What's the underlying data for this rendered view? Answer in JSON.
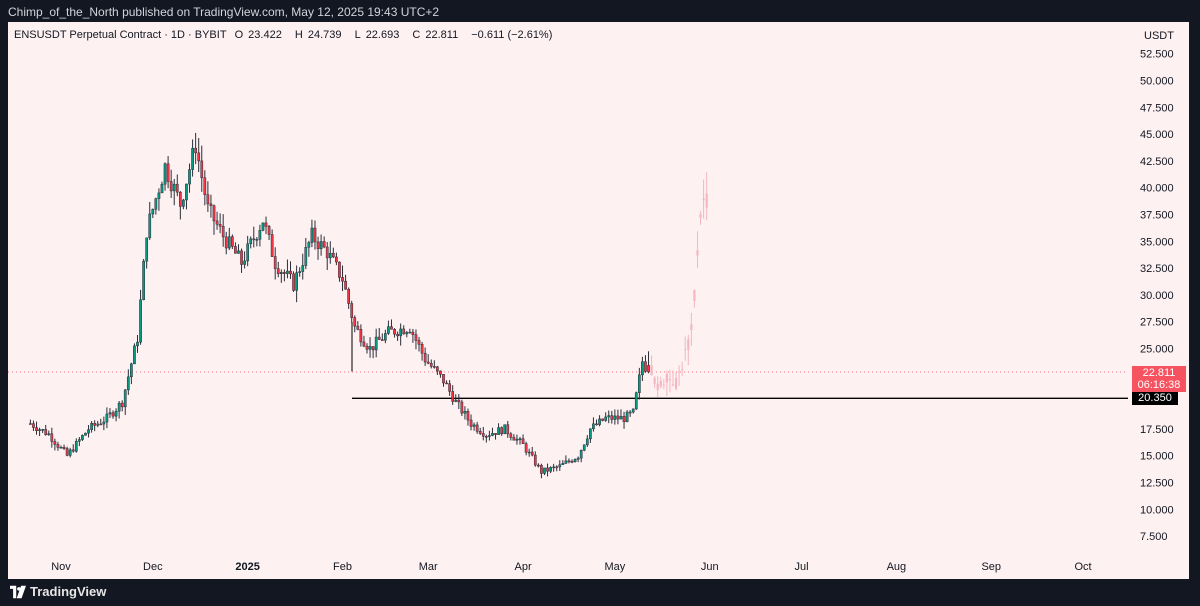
{
  "header": {
    "publisher_text": "Chimp_of_the_North published on TradingView.com, May 12, 2025 19:43 UTC+2"
  },
  "legend": {
    "symbol": "ENSUSDT Perpetual Contract · 1D · BYBIT",
    "open_label": "O",
    "open": "23.422",
    "high_label": "H",
    "high": "24.739",
    "low_label": "L",
    "low": "22.693",
    "close_label": "C",
    "close": "22.811",
    "change": "−0.611 (−2.61%)"
  },
  "price_axis": {
    "unit": "USDT",
    "ticks": [
      "52.500",
      "50.000",
      "47.500",
      "45.000",
      "42.500",
      "40.000",
      "37.500",
      "35.000",
      "32.500",
      "30.000",
      "27.500",
      "25.000",
      "17.500",
      "15.000",
      "12.500",
      "10.000",
      "7.500"
    ]
  },
  "current_price": {
    "value": "22.811",
    "countdown": "06:16:38"
  },
  "horizontal_level": {
    "value": "20.350"
  },
  "footer": {
    "brand": "TradingView",
    "logo_icon": "tradingview-logo-icon"
  },
  "colors": {
    "up": "#089981",
    "down": "#f23645",
    "projection": "#f4b6c0",
    "background": "#fdf1f1",
    "frame": "#131722",
    "current_price": "#f7525f",
    "level": "#000000"
  },
  "chart_data": {
    "type": "candlestick",
    "x_axis_labels": [
      "Nov",
      "Dec",
      "2025",
      "Feb",
      "Mar",
      "Apr",
      "May",
      "Jun",
      "Jul",
      "Aug",
      "Sep",
      "Oct"
    ],
    "ylim": [
      6.5,
      54
    ],
    "interval": "1D",
    "level": 20.35,
    "price_anchors": [
      [
        "2024-10-22",
        18.0
      ],
      [
        "2024-10-28",
        17.0
      ],
      [
        "2024-11-03",
        15.0
      ],
      [
        "2024-11-10",
        17.5
      ],
      [
        "2024-11-16",
        18.5
      ],
      [
        "2024-11-21",
        20.0
      ],
      [
        "2024-11-26",
        26.0
      ],
      [
        "2024-11-29",
        36.0
      ],
      [
        "2024-12-05",
        42.0
      ],
      [
        "2024-12-10",
        38.5
      ],
      [
        "2024-12-15",
        44.0
      ],
      [
        "2024-12-19",
        38.0
      ],
      [
        "2024-12-24",
        35.5
      ],
      [
        "2024-12-30",
        33.0
      ],
      [
        "2025-01-06",
        37.0
      ],
      [
        "2025-01-10",
        33.0
      ],
      [
        "2025-01-16",
        31.0
      ],
      [
        "2025-01-22",
        35.5
      ],
      [
        "2025-01-27",
        34.0
      ],
      [
        "2025-02-01",
        31.5
      ],
      [
        "2025-02-05",
        27.0
      ],
      [
        "2025-02-10",
        25.0
      ],
      [
        "2025-02-16",
        26.5
      ],
      [
        "2025-02-23",
        27.0
      ],
      [
        "2025-02-28",
        24.0
      ],
      [
        "2025-03-06",
        22.0
      ],
      [
        "2025-03-10",
        20.0
      ],
      [
        "2025-03-15",
        18.0
      ],
      [
        "2025-03-20",
        17.0
      ],
      [
        "2025-03-26",
        17.5
      ],
      [
        "2025-04-01",
        16.0
      ],
      [
        "2025-04-07",
        13.5
      ],
      [
        "2025-04-13",
        14.0
      ],
      [
        "2025-04-19",
        15.0
      ],
      [
        "2025-04-23",
        17.5
      ],
      [
        "2025-04-28",
        18.5
      ],
      [
        "2025-05-04",
        18.5
      ],
      [
        "2025-05-07",
        19.0
      ],
      [
        "2025-05-10",
        23.8
      ],
      [
        "2025-05-12",
        22.8
      ]
    ],
    "last_candle": {
      "date": "2025-05-12",
      "open": 23.422,
      "high": 24.739,
      "low": 22.693,
      "close": 22.811
    },
    "projection_anchors": [
      [
        "2025-05-13",
        23.0
      ],
      [
        "2025-05-15",
        21.2
      ],
      [
        "2025-05-18",
        22.5
      ],
      [
        "2025-05-21",
        21.8
      ],
      [
        "2025-05-23",
        23.5
      ],
      [
        "2025-05-26",
        26.5
      ],
      [
        "2025-05-27",
        30.0
      ],
      [
        "2025-05-29",
        38.0
      ],
      [
        "2025-05-31",
        39.0
      ]
    ]
  }
}
